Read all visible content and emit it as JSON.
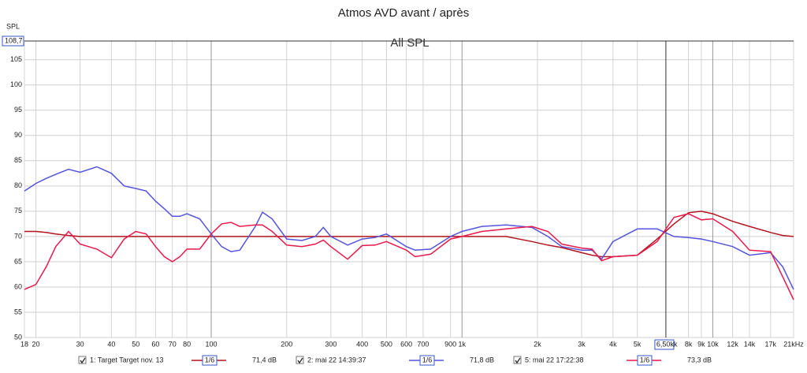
{
  "chart_data": {
    "type": "line",
    "title": "Atmos AVD avant / après",
    "subtitle": "All SPL",
    "y_label": "SPL",
    "log_x": true,
    "grid": true,
    "xlim": [
      18,
      21000
    ],
    "ylim": [
      50,
      108.7
    ],
    "yticks": [
      50,
      55,
      60,
      65,
      70,
      75,
      80,
      85,
      90,
      95,
      100,
      105
    ],
    "xticks": [
      18,
      20,
      30,
      40,
      50,
      60,
      70,
      80,
      100,
      200,
      300,
      400,
      500,
      600,
      700,
      900,
      {
        "value": 1000,
        "label": "1k"
      },
      {
        "value": 2000,
        "label": "2k"
      },
      {
        "value": 3000,
        "label": "3k"
      },
      {
        "value": 4000,
        "label": "4k"
      },
      {
        "value": 5000,
        "label": "5k"
      },
      {
        "value": 8000,
        "label": "8k"
      },
      {
        "value": 9000,
        "label": "9k"
      },
      {
        "value": 10000,
        "label": "10k"
      },
      {
        "value": 12000,
        "label": "12k"
      },
      {
        "value": 14000,
        "label": "14k"
      },
      {
        "value": 17000,
        "label": "17k"
      },
      {
        "value": 21000,
        "label": "21kHz"
      }
    ],
    "cursor": {
      "x": {
        "value": 6500,
        "label": "6,50kk"
      },
      "y": {
        "value": 108.7,
        "label": "108,7"
      }
    },
    "x": [
      18,
      20,
      22,
      24,
      27,
      30,
      35,
      40,
      45,
      50,
      55,
      60,
      65,
      70,
      75,
      80,
      90,
      100,
      110,
      120,
      130,
      150,
      160,
      175,
      200,
      230,
      260,
      280,
      300,
      350,
      400,
      450,
      500,
      600,
      650,
      750,
      900,
      1000,
      1200,
      1500,
      1900,
      2200,
      2500,
      3000,
      3300,
      3600,
      4000,
      5000,
      6000,
      7000,
      8000,
      9000,
      10000,
      12000,
      14000,
      17000,
      19000,
      21000
    ],
    "series": [
      {
        "name": "1: Target Target nov. 13",
        "color": "#b3141e",
        "smoothing": "1/6",
        "level": "71,4 dB",
        "values": [
          71,
          71,
          70.8,
          70.5,
          70.2,
          70,
          70,
          70,
          70,
          70,
          70,
          70,
          70,
          70,
          70,
          70,
          70,
          70,
          70,
          70,
          70,
          70,
          70,
          70,
          70,
          70,
          70,
          70,
          70,
          70,
          70,
          70,
          70,
          70,
          70,
          70,
          70,
          70,
          70,
          70,
          69,
          68.3,
          67.8,
          66.8,
          66.3,
          66,
          66,
          66.3,
          69.5,
          72.5,
          74.7,
          75,
          74.5,
          73,
          72,
          70.8,
          70.2,
          70
        ]
      },
      {
        "name": "2: mai 22 14:39:37",
        "color": "#5454dc",
        "smoothing": "1/6",
        "level": "71,8 dB",
        "values": [
          79,
          80.5,
          81.5,
          82.3,
          83.3,
          82.7,
          83.8,
          82.5,
          80,
          79.5,
          79,
          77,
          75.5,
          74,
          74,
          74.5,
          73.5,
          70.5,
          68,
          67,
          67.3,
          72,
          74.8,
          73.5,
          69.5,
          69.2,
          70,
          71.8,
          70,
          68.3,
          69.5,
          69.8,
          70.5,
          68,
          67.3,
          67.5,
          70,
          71,
          72,
          72.3,
          71.8,
          70,
          68,
          67.3,
          67.3,
          65.5,
          69,
          71.5,
          71.5,
          70,
          69.8,
          69.5,
          69,
          68,
          66.3,
          66.8,
          64,
          59.5
        ]
      },
      {
        "name": "5: mai 22 17:22:38",
        "color": "#e8194b",
        "smoothing": "1/6",
        "level": "73,3 dB",
        "values": [
          59.5,
          60.5,
          64,
          68,
          71,
          68.5,
          67.5,
          65.8,
          69.5,
          71,
          70.5,
          68,
          66,
          65,
          66,
          67.5,
          67.5,
          70.5,
          72.5,
          72.8,
          72,
          72.3,
          72.3,
          71,
          68.3,
          68,
          68.5,
          69.3,
          68,
          65.5,
          68.2,
          68.3,
          69,
          67.3,
          66,
          66.5,
          69.5,
          70,
          71,
          71.5,
          72,
          71,
          68.5,
          67.7,
          67.5,
          65.2,
          66,
          66.3,
          69,
          73.8,
          74.5,
          73.3,
          73.5,
          71,
          67.3,
          67,
          62,
          57.5
        ]
      }
    ]
  }
}
